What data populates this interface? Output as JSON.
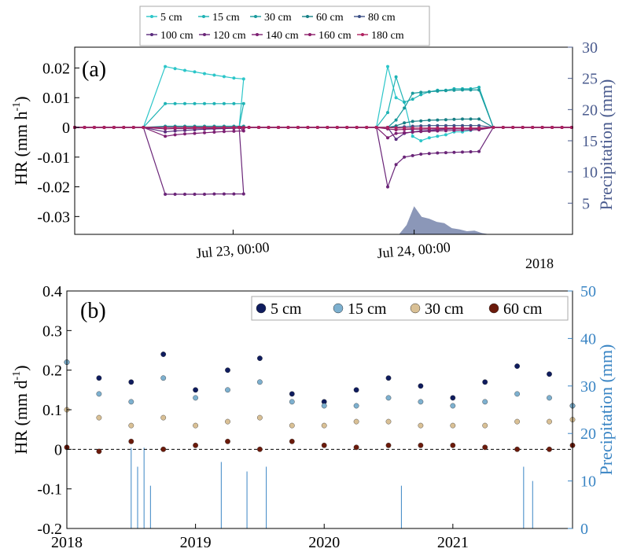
{
  "chart_data": [
    {
      "panel_label": "(a)",
      "type": "line",
      "ylabel_left_main": "HR (mm h",
      "ylabel_left_sup": "-1",
      "ylabel_left_close": ")",
      "ylabel_right": "Precipitation (mm)",
      "year_label": "2018",
      "ylim_left": [
        -0.036,
        0.027
      ],
      "ylim_right": [
        0,
        30
      ],
      "yticks_left": [
        0.02,
        0.01,
        0,
        -0.01,
        -0.02,
        -0.03
      ],
      "yticks_left_labels": [
        "0.02",
        "0.01",
        "0",
        "-0.01",
        "-0.02",
        "-0.03"
      ],
      "yticks_right": [
        5,
        10,
        15,
        20,
        25,
        30
      ],
      "yticks_right_labels": [
        "5",
        "10",
        "15",
        "20",
        "25",
        "30"
      ],
      "x_range_hours": [
        -21,
        45
      ],
      "xticks": [
        0,
        24
      ],
      "xtick_labels": [
        "Jul 23, 00:00",
        "Jul 24, 00:00"
      ],
      "legend": [
        "5 cm",
        "15 cm",
        "30 cm",
        "60 cm",
        "80 cm",
        "100 cm",
        "120 cm",
        "140 cm",
        "160 cm",
        "180 cm"
      ],
      "colors": [
        "#2cc6c9",
        "#1eb3b5",
        "#189a9d",
        "#157f85",
        "#3c4f86",
        "#5a2c7e",
        "#6a2578",
        "#7d1f72",
        "#8c1c68",
        "#b0215f"
      ],
      "series": [
        {
          "name": "5 cm",
          "events": [
            [
              0.0205,
              0.0198,
              0.0192,
              0.0187,
              0.0181,
              0.0176,
              0.0171,
              0.0166,
              0.0163
            ],
            [
              0.0205,
              0.01,
              0.0085,
              -0.003,
              -0.0045,
              -0.0035,
              -0.003,
              -0.0025,
              -0.0015,
              -0.0015,
              -0.001,
              -0.0005
            ]
          ]
        },
        {
          "name": "15 cm",
          "events": [
            [
              0.008,
              0.008,
              0.008,
              0.008,
              0.008,
              0.008,
              0.008,
              0.008,
              0.008
            ],
            [
              0.005,
              0.017,
              0.0085,
              0.0095,
              0.011,
              0.012,
              0.0125,
              0.0125,
              0.013,
              0.013,
              0.013,
              0.0135
            ]
          ]
        },
        {
          "name": "30 cm",
          "events": [
            [
              0.0004,
              0.0004,
              0.0004,
              0.0004,
              0.0004,
              0.0004,
              0.0004,
              0.0004,
              0.0004
            ],
            [
              0.0,
              0.0025,
              0.0065,
              0.0115,
              0.0118,
              0.012,
              0.0122,
              0.0124,
              0.0125,
              0.0126,
              0.0126,
              0.0126
            ]
          ]
        },
        {
          "name": "60 cm",
          "events": [
            [
              0.0,
              0.0,
              0.0,
              0.0,
              0.0,
              0.0,
              0.0,
              0.0,
              0.0
            ],
            [
              0.0,
              0.0005,
              0.0015,
              0.002,
              0.0022,
              0.0024,
              0.0025,
              0.0026,
              0.0027,
              0.0028,
              0.0028,
              0.0028
            ]
          ]
        },
        {
          "name": "80 cm",
          "events": [
            [
              0.0,
              0.0,
              0.0,
              0.0,
              0.0,
              0.0,
              0.0,
              0.0,
              0.0
            ],
            [
              0.0,
              0.0,
              0.0002,
              0.0004,
              0.0005,
              0.0006,
              0.0006,
              0.0006,
              0.0006,
              0.0006,
              0.0006,
              0.0006
            ]
          ]
        },
        {
          "name": "100 cm",
          "events": [
            [
              -0.0015,
              -0.0012,
              -0.001,
              -0.0008,
              -0.0006,
              -0.0005,
              -0.0004,
              -0.0003,
              -0.0002
            ],
            [
              -0.0,
              -0.004,
              -0.002,
              -0.0015,
              -0.0012,
              -0.001,
              -0.0008,
              -0.0006,
              -0.0005,
              -0.0004,
              -0.0003,
              -0.0002
            ]
          ]
        },
        {
          "name": "120 cm",
          "events": [
            [
              -0.0225,
              -0.0225,
              -0.0225,
              -0.0225,
              -0.0225,
              -0.0224,
              -0.0224,
              -0.0224,
              -0.0224
            ],
            [
              -0.02,
              -0.0125,
              -0.01,
              -0.0095,
              -0.009,
              -0.0088,
              -0.0086,
              -0.0085,
              -0.0084,
              -0.0083,
              -0.0082,
              -0.0081
            ]
          ]
        },
        {
          "name": "140 cm",
          "events": [
            [
              -0.003,
              -0.0025,
              -0.0022,
              -0.002,
              -0.0018,
              -0.0016,
              -0.0014,
              -0.0013,
              -0.0012
            ],
            [
              -0.0035,
              -0.002,
              -0.0018,
              -0.0016,
              -0.0014,
              -0.0013,
              -0.0012,
              -0.0011,
              -0.001,
              -0.0009,
              -0.0008,
              -0.0008
            ]
          ]
        },
        {
          "name": "160 cm",
          "events": [
            [
              -0.0005,
              -0.0004,
              -0.0004,
              -0.0003,
              -0.0003,
              -0.0003,
              -0.0002,
              -0.0002,
              -0.0002
            ],
            [
              -0.0005,
              -0.0008,
              -0.0007,
              -0.0006,
              -0.0006,
              -0.0005,
              -0.0005,
              -0.0004,
              -0.0004,
              -0.0004,
              -0.0004,
              -0.0004
            ]
          ]
        },
        {
          "name": "180 cm",
          "events": [
            [
              -0.0,
              -0.0,
              -0.0,
              -0.0,
              -0.0,
              -0.0,
              -0.0,
              -0.0,
              -0.0
            ],
            [
              -0.0,
              -0.0002,
              -0.0002,
              -0.0002,
              -0.0002,
              -0.0002,
              -0.0002,
              -0.0002,
              -0.0002,
              -0.0002,
              -0.0002,
              -0.0002
            ]
          ]
        }
      ],
      "precipitation": {
        "color": "#8b97b8",
        "x": [
          22,
          23,
          24,
          25,
          26,
          27,
          28,
          29,
          30,
          31,
          32,
          33,
          34
        ],
        "values": [
          0,
          1.5,
          4.5,
          2.8,
          2.5,
          2.0,
          1.8,
          1.0,
          0.8,
          0.5,
          0.6,
          0.2,
          0
        ]
      }
    },
    {
      "panel_label": "(b)",
      "type": "scatter",
      "ylabel_left_main": "HR (mm d",
      "ylabel_left_sup": "-1",
      "ylabel_left_close": ")",
      "ylabel_right": "Precipitation (mm)",
      "ylim_left": [
        -0.2,
        0.4
      ],
      "ylim_right": [
        0,
        50
      ],
      "yticks_left": [
        0.4,
        0.3,
        0.2,
        0.1,
        0,
        -0.1,
        -0.2
      ],
      "yticks_left_labels": [
        "0.4",
        "0.3",
        "0.2",
        "0.1",
        "0",
        "-0.1",
        "-0.2"
      ],
      "yticks_right": [
        0,
        10,
        20,
        30,
        40,
        50
      ],
      "yticks_right_labels": [
        "0",
        "10",
        "20",
        "30",
        "40",
        "50"
      ],
      "xlim": [
        2018,
        2021.93
      ],
      "xticks": [
        2018,
        2019,
        2020,
        2021
      ],
      "xtick_labels": [
        "2018",
        "2019",
        "2020",
        "2021"
      ],
      "legend": [
        "5 cm",
        "15 cm",
        "30 cm",
        "60 cm"
      ],
      "series": [
        {
          "name": "5 cm",
          "color": "#0f1c5e",
          "x": [
            2018.0,
            2018.25,
            2018.5,
            2018.75,
            2019.0,
            2019.25,
            2019.5,
            2019.75,
            2020.0,
            2020.25,
            2020.5,
            2020.75,
            2021.0,
            2021.25,
            2021.5,
            2021.75,
            2021.93
          ],
          "y": [
            0.22,
            0.18,
            0.17,
            0.24,
            0.15,
            0.2,
            0.23,
            0.14,
            0.12,
            0.15,
            0.18,
            0.16,
            0.13,
            0.17,
            0.21,
            0.19,
            0.11
          ]
        },
        {
          "name": "15 cm",
          "color": "#7db0cf",
          "x": [
            2018.0,
            2018.25,
            2018.5,
            2018.75,
            2019.0,
            2019.25,
            2019.5,
            2019.75,
            2020.0,
            2020.25,
            2020.5,
            2020.75,
            2021.0,
            2021.25,
            2021.5,
            2021.75,
            2021.93
          ],
          "y": [
            0.22,
            0.14,
            0.12,
            0.18,
            0.13,
            0.15,
            0.17,
            0.12,
            0.11,
            0.11,
            0.13,
            0.12,
            0.11,
            0.12,
            0.14,
            0.13,
            0.11
          ]
        },
        {
          "name": "30 cm",
          "color": "#d9c095",
          "x": [
            2018.0,
            2018.25,
            2018.5,
            2018.75,
            2019.0,
            2019.25,
            2019.5,
            2019.75,
            2020.0,
            2020.25,
            2020.5,
            2020.75,
            2021.0,
            2021.25,
            2021.5,
            2021.75,
            2021.93
          ],
          "y": [
            0.1,
            0.08,
            0.06,
            0.08,
            0.06,
            0.07,
            0.08,
            0.06,
            0.06,
            0.07,
            0.07,
            0.06,
            0.06,
            0.06,
            0.07,
            0.07,
            0.075
          ]
        },
        {
          "name": "60 cm",
          "color": "#6b1a0b",
          "x": [
            2018.0,
            2018.25,
            2018.5,
            2018.75,
            2019.0,
            2019.25,
            2019.5,
            2019.75,
            2020.0,
            2020.25,
            2020.5,
            2020.75,
            2021.0,
            2021.25,
            2021.5,
            2021.75,
            2021.93
          ],
          "y": [
            0.005,
            -0.005,
            0.02,
            0.0,
            0.01,
            0.02,
            0.0,
            0.02,
            0.01,
            0.005,
            0.01,
            0.01,
            0.01,
            0.005,
            0.0,
            0.0,
            0.01
          ]
        }
      ],
      "precipitation": {
        "color": "#3a85c4",
        "x": [
          2018.5,
          2018.55,
          2018.6,
          2018.65,
          2019.2,
          2019.4,
          2019.55,
          2020.6,
          2021.55,
          2021.62
        ],
        "values": [
          17,
          13,
          17,
          9,
          14,
          12,
          13,
          9,
          13,
          10
        ]
      }
    }
  ]
}
